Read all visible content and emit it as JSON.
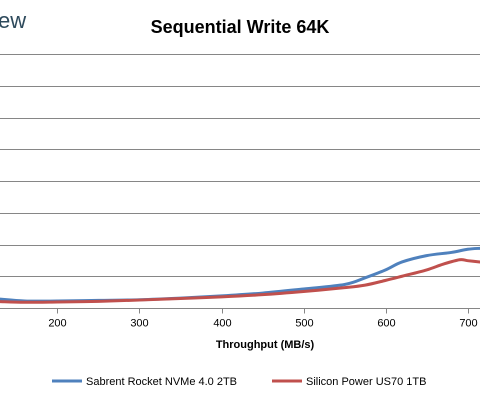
{
  "brand_fragment": "ew",
  "chart_data": {
    "type": "line",
    "title": "Sequential Write 64K",
    "xlabel": "Throughput (MB/s)",
    "ylabel": "",
    "xlim": [
      130,
      715
    ],
    "ylim": [
      0,
      8
    ],
    "x_ticks": [
      200,
      300,
      400,
      500,
      600,
      700
    ],
    "x_tick_labels": [
      "200",
      "300",
      "400",
      "500",
      "600",
      "700"
    ],
    "y_gridlines": [
      0,
      1,
      2,
      3,
      4,
      5,
      6,
      7,
      8
    ],
    "grid": true,
    "legend_position": "bottom",
    "series": [
      {
        "name": "Sabrent Rocket NVMe 4.0 2TB",
        "color": "#4f81bd",
        "x": [
          130,
          160,
          200,
          250,
          300,
          350,
          400,
          450,
          500,
          550,
          575,
          600,
          620,
          650,
          680,
          700,
          715
        ],
        "y": [
          0.28,
          0.22,
          0.22,
          0.24,
          0.26,
          0.31,
          0.38,
          0.47,
          0.6,
          0.74,
          0.95,
          1.2,
          1.45,
          1.65,
          1.75,
          1.85,
          1.88
        ]
      },
      {
        "name": "Silicon Power US70 1TB",
        "color": "#c0504d",
        "x": [
          130,
          160,
          200,
          250,
          300,
          350,
          400,
          450,
          500,
          550,
          575,
          600,
          620,
          650,
          670,
          690,
          700,
          715
        ],
        "y": [
          0.2,
          0.18,
          0.19,
          0.21,
          0.25,
          0.3,
          0.35,
          0.42,
          0.52,
          0.64,
          0.72,
          0.87,
          1.0,
          1.2,
          1.38,
          1.52,
          1.49,
          1.45
        ]
      }
    ]
  }
}
